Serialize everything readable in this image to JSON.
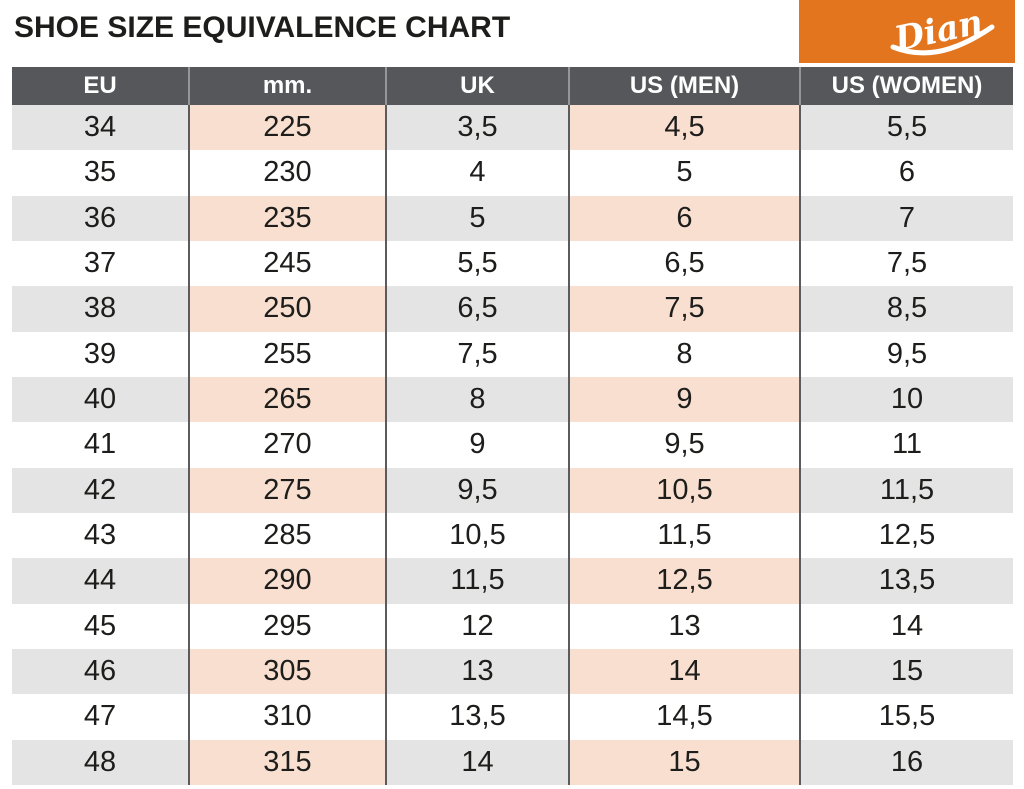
{
  "title": "SHOE SIZE EQUIVALENCE CHART",
  "logo": {
    "text": "Dian",
    "bg_color": "#e2751d",
    "text_color": "#ffffff"
  },
  "colors": {
    "header_bg": "#56575b",
    "header_text": "#ffffff",
    "row_shaded": "#e5e4e4",
    "row_highlight": "#f8dfd0",
    "row_white": "#ffffff",
    "grid_line": "#5a5b5f",
    "text": "#1d1d1b",
    "accent_orange": "#e2751d"
  },
  "chart_data": {
    "type": "table",
    "title": "SHOE SIZE EQUIVALENCE CHART",
    "columns": [
      "EU",
      "mm.",
      "UK",
      "US (MEN)",
      "US (WOMEN)"
    ],
    "highlight_columns": [
      "mm.",
      "US (MEN)"
    ],
    "rows": [
      [
        "34",
        "225",
        "3,5",
        "4,5",
        "5,5"
      ],
      [
        "35",
        "230",
        "4",
        "5",
        "6"
      ],
      [
        "36",
        "235",
        "5",
        "6",
        "7"
      ],
      [
        "37",
        "245",
        "5,5",
        "6,5",
        "7,5"
      ],
      [
        "38",
        "250",
        "6,5",
        "7,5",
        "8,5"
      ],
      [
        "39",
        "255",
        "7,5",
        "8",
        "9,5"
      ],
      [
        "40",
        "265",
        "8",
        "9",
        "10"
      ],
      [
        "41",
        "270",
        "9",
        "9,5",
        "11"
      ],
      [
        "42",
        "275",
        "9,5",
        "10,5",
        "11,5"
      ],
      [
        "43",
        "285",
        "10,5",
        "11,5",
        "12,5"
      ],
      [
        "44",
        "290",
        "11,5",
        "12,5",
        "13,5"
      ],
      [
        "45",
        "295",
        "12",
        "13",
        "14"
      ],
      [
        "46",
        "305",
        "13",
        "14",
        "15"
      ],
      [
        "47",
        "310",
        "13,5",
        "14,5",
        "15,5"
      ],
      [
        "48",
        "315",
        "14",
        "15",
        "16"
      ]
    ]
  }
}
